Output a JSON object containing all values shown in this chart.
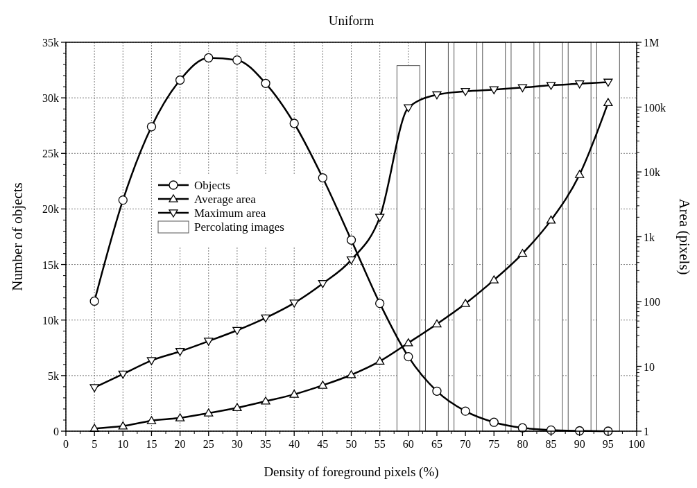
{
  "chart_data": {
    "type": "line",
    "title": "Uniform",
    "xlabel": "Density of foreground pixels (%)",
    "ylabel": "Number of objects",
    "y2label": "Area (pixels)",
    "x": [
      5,
      10,
      15,
      20,
      25,
      30,
      35,
      40,
      45,
      50,
      55,
      60,
      65,
      70,
      75,
      80,
      85,
      90,
      95
    ],
    "xlim": [
      0,
      100
    ],
    "xticks": [
      0,
      5,
      10,
      15,
      20,
      25,
      30,
      35,
      40,
      45,
      50,
      55,
      60,
      65,
      70,
      75,
      80,
      85,
      90,
      95,
      100
    ],
    "ylim": [
      0,
      35000
    ],
    "yticks": [
      {
        "value": 0,
        "label": "0"
      },
      {
        "value": 5000,
        "label": "5k"
      },
      {
        "value": 10000,
        "label": "10k"
      },
      {
        "value": 15000,
        "label": "15k"
      },
      {
        "value": 20000,
        "label": "20k"
      },
      {
        "value": 25000,
        "label": "25k"
      },
      {
        "value": 30000,
        "label": "30k"
      },
      {
        "value": 35000,
        "label": "35k"
      }
    ],
    "y2lim": [
      1,
      1000000
    ],
    "y2ticks": [
      {
        "value": 1,
        "label": "1"
      },
      {
        "value": 10,
        "label": "10"
      },
      {
        "value": 100,
        "label": "100"
      },
      {
        "value": 1000,
        "label": "1k"
      },
      {
        "value": 10000,
        "label": "10k"
      },
      {
        "value": 100000,
        "label": "100k"
      },
      {
        "value": 1000000,
        "label": "1M"
      }
    ],
    "log": "y2",
    "grid": true,
    "legend": "left",
    "line_style": "solid",
    "series": [
      {
        "name": "Percolating images",
        "type": "bar",
        "color": "#ffffff",
        "x": [
          60,
          65,
          70,
          75,
          80,
          85,
          90,
          95
        ],
        "values": [
          32900,
          35000,
          35000,
          35000,
          35000,
          35000,
          35000,
          35000
        ]
      },
      {
        "name": "Objects",
        "color": "#000000",
        "marker": "circle",
        "values": [
          11700,
          20800,
          27400,
          31600,
          33600,
          33400,
          31300,
          27700,
          22800,
          17200,
          11500,
          6700,
          3600,
          1800,
          800,
          300,
          100,
          30,
          0
        ]
      },
      {
        "name": "Average area",
        "axis": "y2",
        "color": "#000000",
        "marker": "triangle",
        "values": [
          1.1,
          1.2,
          1.45,
          1.6,
          1.9,
          2.3,
          2.9,
          3.7,
          5.1,
          7.4,
          12,
          23,
          45,
          93,
          215,
          550,
          1800,
          9100,
          117000
        ]
      },
      {
        "name": "Maximum area",
        "axis": "y2",
        "color": "#000000",
        "marker": "triangle-down",
        "values": [
          4.7,
          7.6,
          12.3,
          17,
          24.5,
          36,
          56,
          95,
          190,
          440,
          2000,
          98000,
          155000,
          175000,
          186000,
          200000,
          217000,
          229000,
          243000
        ]
      }
    ]
  }
}
